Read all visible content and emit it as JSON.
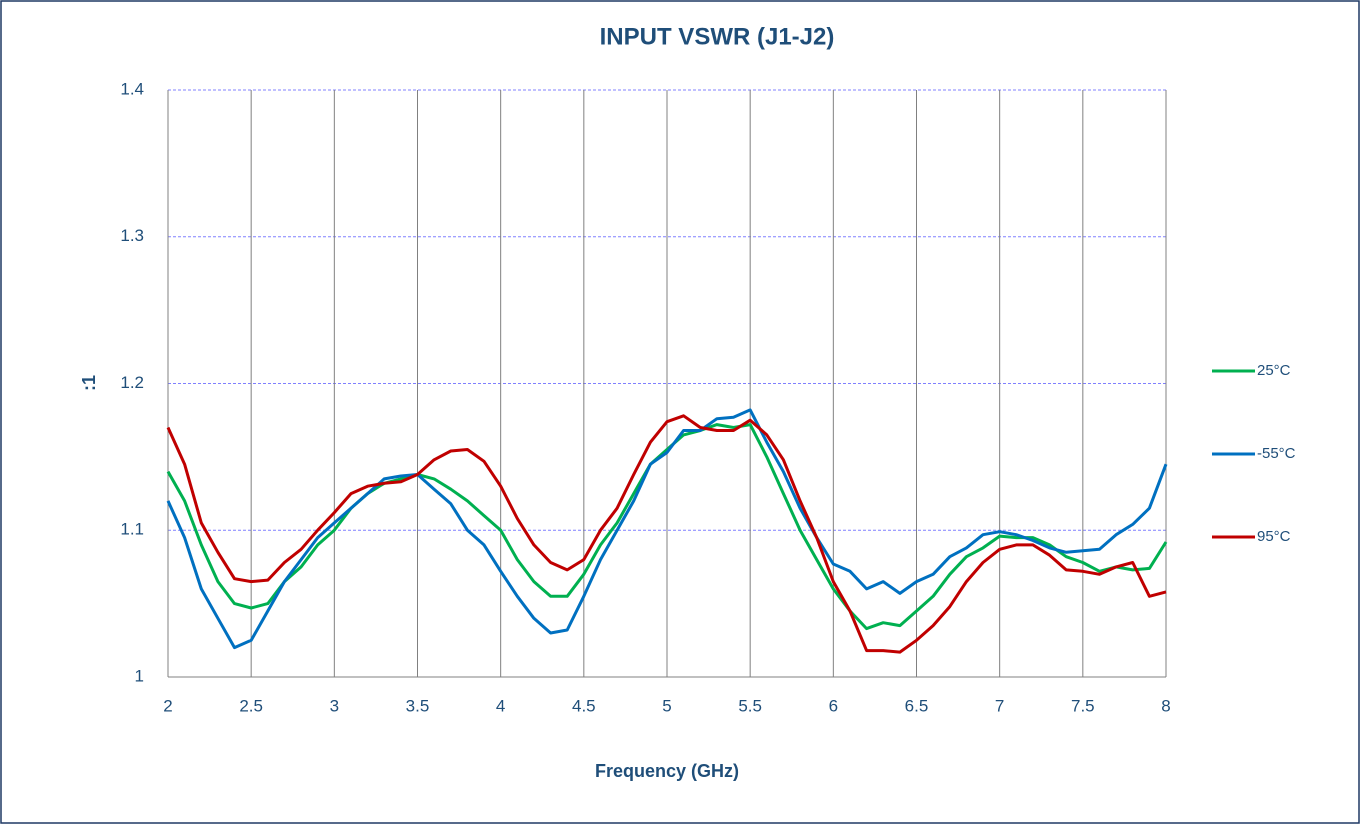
{
  "chart_data": {
    "type": "line",
    "title": "INPUT VSWR (J1-J2)",
    "x_label": "Frequency (GHz)",
    "y_label": ":1",
    "x": [
      2,
      2.1,
      2.2,
      2.3,
      2.4,
      2.5,
      2.6,
      2.7,
      2.8,
      2.9,
      3,
      3.1,
      3.2,
      3.3,
      3.4,
      3.5,
      3.6,
      3.7,
      3.8,
      3.9,
      4,
      4.1,
      4.2,
      4.3,
      4.4,
      4.5,
      4.6,
      4.7,
      4.8,
      4.9,
      5,
      5.1,
      5.2,
      5.3,
      5.4,
      5.5,
      5.6,
      5.7,
      5.8,
      5.9,
      6,
      6.1,
      6.2,
      6.3,
      6.4,
      6.5,
      6.6,
      6.7,
      6.8,
      6.9,
      7,
      7.1,
      7.2,
      7.3,
      7.4,
      7.5,
      7.6,
      7.7,
      7.8,
      7.9,
      8
    ],
    "series": [
      {
        "name": "25°C",
        "color": "#00b050",
        "values": [
          1.14,
          1.12,
          1.09,
          1.065,
          1.05,
          1.047,
          1.05,
          1.065,
          1.075,
          1.09,
          1.1,
          1.115,
          1.125,
          1.132,
          1.135,
          1.138,
          1.135,
          1.128,
          1.12,
          1.11,
          1.1,
          1.08,
          1.065,
          1.055,
          1.055,
          1.07,
          1.09,
          1.105,
          1.125,
          1.145,
          1.155,
          1.165,
          1.168,
          1.172,
          1.17,
          1.172,
          1.15,
          1.125,
          1.1,
          1.08,
          1.06,
          1.045,
          1.033,
          1.037,
          1.035,
          1.045,
          1.055,
          1.07,
          1.082,
          1.088,
          1.096,
          1.095,
          1.095,
          1.09,
          1.082,
          1.078,
          1.072,
          1.075,
          1.073,
          1.074,
          1.092
        ]
      },
      {
        "name": "-55°C",
        "color": "#0070c0",
        "values": [
          1.12,
          1.095,
          1.06,
          1.04,
          1.02,
          1.025,
          1.045,
          1.065,
          1.08,
          1.095,
          1.105,
          1.115,
          1.125,
          1.135,
          1.137,
          1.138,
          1.128,
          1.118,
          1.1,
          1.09,
          1.072,
          1.055,
          1.04,
          1.03,
          1.032,
          1.055,
          1.08,
          1.1,
          1.12,
          1.145,
          1.153,
          1.168,
          1.168,
          1.176,
          1.177,
          1.182,
          1.16,
          1.14,
          1.115,
          1.095,
          1.077,
          1.072,
          1.06,
          1.065,
          1.057,
          1.065,
          1.07,
          1.082,
          1.088,
          1.097,
          1.099,
          1.097,
          1.093,
          1.088,
          1.085,
          1.086,
          1.087,
          1.097,
          1.104,
          1.115,
          1.145
        ]
      },
      {
        "name": "95°C",
        "color": "#c00000",
        "values": [
          1.17,
          1.145,
          1.105,
          1.085,
          1.067,
          1.065,
          1.066,
          1.078,
          1.087,
          1.1,
          1.112,
          1.125,
          1.13,
          1.132,
          1.133,
          1.138,
          1.148,
          1.154,
          1.155,
          1.147,
          1.13,
          1.108,
          1.09,
          1.078,
          1.073,
          1.08,
          1.1,
          1.115,
          1.138,
          1.16,
          1.174,
          1.178,
          1.17,
          1.168,
          1.168,
          1.175,
          1.165,
          1.148,
          1.12,
          1.095,
          1.065,
          1.045,
          1.018,
          1.018,
          1.017,
          1.025,
          1.035,
          1.048,
          1.065,
          1.078,
          1.087,
          1.09,
          1.09,
          1.083,
          1.073,
          1.072,
          1.07,
          1.075,
          1.078,
          1.055,
          1.058
        ]
      }
    ],
    "xlim": [
      2,
      8
    ],
    "xticks": [
      2,
      2.5,
      3,
      3.5,
      4,
      4.5,
      5,
      5.5,
      6,
      6.5,
      7,
      7.5,
      8
    ],
    "ylim": [
      1,
      1.4
    ],
    "yticks": [
      1,
      1.1,
      1.2,
      1.3,
      1.4
    ],
    "grid": true,
    "legend": "right"
  }
}
